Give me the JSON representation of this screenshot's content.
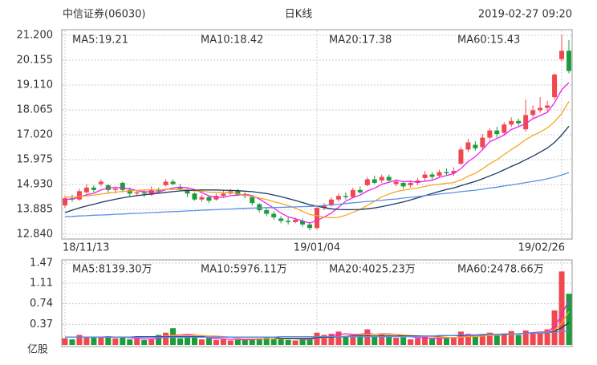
{
  "header": {
    "title": "中信证券(06030)",
    "subtitle": "日K线",
    "datetime": "2019-02-27 09:20"
  },
  "chart_data": [
    {
      "type": "candlestick",
      "categories": [
        "18/11/13",
        null,
        null,
        null,
        null,
        null,
        null,
        null,
        null,
        null,
        null,
        null,
        null,
        null,
        null,
        null,
        null,
        null,
        null,
        null,
        null,
        null,
        null,
        null,
        null,
        null,
        null,
        null,
        null,
        null,
        null,
        null,
        null,
        null,
        null,
        "19/01/04",
        null,
        null,
        null,
        null,
        null,
        null,
        null,
        null,
        null,
        null,
        null,
        null,
        null,
        null,
        null,
        null,
        null,
        null,
        null,
        null,
        null,
        null,
        null,
        null,
        null,
        null,
        null,
        null,
        null,
        null,
        null,
        null,
        null,
        "19/02/26",
        null
      ],
      "open": [
        14.05,
        14.35,
        14.3,
        14.6,
        14.8,
        14.95,
        14.9,
        14.7,
        15.0,
        14.7,
        14.55,
        14.6,
        14.5,
        14.7,
        14.9,
        15.05,
        14.8,
        14.7,
        14.55,
        14.3,
        14.4,
        14.3,
        14.45,
        14.55,
        14.65,
        14.5,
        14.4,
        14.1,
        13.85,
        13.7,
        13.5,
        13.4,
        13.35,
        13.4,
        13.25,
        13.1,
        13.95,
        14.05,
        14.3,
        14.45,
        14.4,
        14.7,
        14.9,
        15.15,
        15.1,
        15.25,
        14.95,
        15.0,
        14.9,
        15.0,
        15.2,
        15.35,
        15.3,
        15.45,
        15.4,
        15.8,
        16.4,
        16.6,
        16.5,
        16.9,
        17.2,
        17.1,
        17.45,
        17.6,
        17.25,
        17.85,
        18.05,
        18.15,
        18.6,
        20.2,
        20.55
      ],
      "high": [
        14.45,
        14.5,
        14.75,
        14.95,
        14.9,
        15.15,
        14.95,
        14.85,
        15.05,
        14.8,
        14.7,
        14.7,
        14.85,
        14.8,
        15.15,
        15.15,
        14.95,
        14.75,
        14.6,
        14.5,
        14.45,
        14.55,
        14.7,
        14.75,
        14.75,
        14.6,
        14.45,
        14.15,
        13.95,
        13.8,
        13.6,
        13.55,
        13.55,
        13.5,
        13.35,
        14.0,
        14.15,
        14.4,
        14.55,
        14.6,
        14.8,
        14.85,
        15.25,
        15.3,
        15.35,
        15.35,
        15.15,
        15.05,
        15.1,
        15.2,
        15.5,
        15.45,
        15.55,
        15.6,
        15.65,
        16.5,
        16.85,
        16.75,
        17.05,
        17.3,
        17.35,
        17.55,
        17.75,
        17.7,
        18.5,
        18.25,
        18.6,
        18.45,
        19.6,
        21.2,
        21.0
      ],
      "low": [
        13.95,
        14.2,
        14.25,
        14.55,
        14.6,
        14.85,
        14.6,
        14.55,
        14.6,
        14.45,
        14.45,
        14.4,
        14.45,
        14.55,
        14.85,
        14.9,
        14.65,
        14.4,
        14.25,
        14.2,
        14.15,
        14.25,
        14.4,
        14.5,
        14.45,
        14.35,
        14.05,
        13.75,
        13.6,
        13.45,
        13.3,
        13.25,
        13.3,
        13.15,
        13.0,
        13.05,
        13.85,
        14.0,
        14.2,
        14.3,
        14.35,
        14.55,
        14.85,
        14.95,
        15.0,
        15.05,
        14.85,
        14.75,
        14.8,
        14.9,
        15.1,
        15.15,
        15.2,
        15.3,
        15.3,
        15.75,
        16.3,
        16.35,
        16.4,
        16.8,
        16.9,
        17.0,
        17.35,
        17.4,
        17.15,
        17.7,
        17.95,
        18.0,
        18.5,
        20.1,
        19.6
      ],
      "close": [
        14.35,
        14.3,
        14.65,
        14.8,
        14.7,
        15.05,
        14.7,
        14.75,
        14.7,
        14.55,
        14.6,
        14.55,
        14.7,
        14.65,
        15.05,
        14.95,
        14.75,
        14.55,
        14.3,
        14.4,
        14.25,
        14.45,
        14.55,
        14.65,
        14.5,
        14.45,
        14.15,
        13.85,
        13.7,
        13.55,
        13.4,
        13.35,
        13.45,
        13.25,
        13.1,
        13.95,
        14.05,
        14.3,
        14.45,
        14.4,
        14.7,
        14.6,
        15.15,
        15.0,
        15.25,
        15.1,
        15.05,
        14.85,
        15.0,
        15.1,
        15.35,
        15.25,
        15.45,
        15.4,
        15.5,
        16.4,
        16.7,
        16.45,
        16.9,
        17.2,
        17.05,
        17.45,
        17.6,
        17.5,
        17.85,
        18.05,
        18.15,
        18.25,
        19.55,
        20.55,
        19.7
      ],
      "up_color": "#f0484f",
      "down_color": "#1c9c3a",
      "ylim": [
        12.84,
        21.2
      ],
      "yticks": [
        {
          "value": 12.84,
          "label": "12.840"
        },
        {
          "value": 13.885,
          "label": "13.885"
        },
        {
          "value": 14.93,
          "label": "14.930"
        },
        {
          "value": 15.975,
          "label": "15.975"
        },
        {
          "value": 17.02,
          "label": "17.020"
        },
        {
          "value": 18.065,
          "label": "18.065"
        },
        {
          "value": 19.11,
          "label": "19.110"
        },
        {
          "value": 20.155,
          "label": "20.155"
        },
        {
          "value": 21.2,
          "label": "21.200"
        }
      ],
      "grid": true,
      "series": [
        {
          "name": "MA5:19.21",
          "color": "#f01ef0",
          "values": [
            14.3,
            14.32,
            14.4,
            14.5,
            14.56,
            14.7,
            14.78,
            14.81,
            14.78,
            14.75,
            14.67,
            14.63,
            14.62,
            14.61,
            14.71,
            14.78,
            14.82,
            14.79,
            14.72,
            14.59,
            14.45,
            14.39,
            14.39,
            14.46,
            14.48,
            14.52,
            14.46,
            14.32,
            14.13,
            13.94,
            13.73,
            13.57,
            13.49,
            13.4,
            13.31,
            13.42,
            13.56,
            13.73,
            13.97,
            14.23,
            14.38,
            14.49,
            14.66,
            14.77,
            14.94,
            15.02,
            15.11,
            15.05,
            15.06,
            15.02,
            15.07,
            15.11,
            15.23,
            15.31,
            15.39,
            15.6,
            15.89,
            16.1,
            16.39,
            16.73,
            16.86,
            17.01,
            17.24,
            17.36,
            17.49,
            17.69,
            17.83,
            17.96,
            18.37,
            18.91,
            19.21
          ]
        },
        {
          "name": "MA10:18.42",
          "color": "#f5a623",
          "values": [
            14.4,
            14.4,
            14.42,
            14.45,
            14.48,
            14.53,
            14.57,
            14.61,
            14.64,
            14.66,
            14.68,
            14.7,
            14.71,
            14.7,
            14.73,
            14.72,
            14.72,
            14.7,
            14.66,
            14.65,
            14.61,
            14.6,
            14.6,
            14.6,
            14.54,
            14.49,
            14.43,
            14.36,
            14.3,
            14.21,
            14.13,
            14.04,
            13.94,
            13.8,
            13.67,
            13.62,
            13.56,
            13.53,
            13.55,
            13.64,
            13.76,
            13.88,
            14.05,
            14.23,
            14.41,
            14.53,
            14.63,
            14.69,
            14.74,
            14.78,
            14.85,
            14.91,
            14.94,
            14.98,
            15.01,
            15.12,
            15.28,
            15.4,
            15.59,
            15.8,
            15.97,
            16.19,
            16.4,
            16.59,
            16.82,
            16.99,
            17.13,
            17.31,
            17.57,
            17.91,
            18.42
          ]
        },
        {
          "name": "MA20:17.38",
          "color": "#1c3a5e",
          "values": [
            13.75,
            13.85,
            13.95,
            14.03,
            14.1,
            14.18,
            14.25,
            14.31,
            14.37,
            14.42,
            14.46,
            14.5,
            14.53,
            14.56,
            14.6,
            14.63,
            14.66,
            14.68,
            14.69,
            14.7,
            14.7,
            14.7,
            14.69,
            14.68,
            14.67,
            14.65,
            14.63,
            14.59,
            14.55,
            14.49,
            14.42,
            14.34,
            14.26,
            14.17,
            14.08,
            14.02,
            13.96,
            13.91,
            13.88,
            13.87,
            13.87,
            13.88,
            13.91,
            13.95,
            14.0,
            14.06,
            14.13,
            14.2,
            14.28,
            14.37,
            14.46,
            14.55,
            14.64,
            14.72,
            14.79,
            14.88,
            14.97,
            15.06,
            15.17,
            15.29,
            15.41,
            15.55,
            15.69,
            15.82,
            15.97,
            16.12,
            16.29,
            16.46,
            16.7,
            17.01,
            17.38
          ]
        },
        {
          "name": "MA60:15.43",
          "color": "#5b8fe8",
          "values": [
            13.58,
            13.59,
            13.61,
            13.62,
            13.64,
            13.65,
            13.66,
            13.68,
            13.69,
            13.71,
            13.72,
            13.73,
            13.75,
            13.76,
            13.78,
            13.79,
            13.8,
            13.82,
            13.83,
            13.85,
            13.86,
            13.87,
            13.89,
            13.9,
            13.92,
            13.93,
            13.94,
            13.95,
            13.96,
            13.96,
            13.97,
            13.98,
            13.99,
            14.0,
            14.01,
            14.02,
            14.05,
            14.08,
            14.1,
            14.13,
            14.16,
            14.19,
            14.22,
            14.24,
            14.27,
            14.3,
            14.32,
            14.36,
            14.39,
            14.42,
            14.46,
            14.49,
            14.53,
            14.56,
            14.59,
            14.63,
            14.66,
            14.69,
            14.73,
            14.78,
            14.82,
            14.87,
            14.91,
            14.96,
            15.01,
            15.06,
            15.11,
            15.17,
            15.24,
            15.33,
            15.43
          ]
        }
      ]
    },
    {
      "type": "bar",
      "values": [
        0.12,
        0.1,
        0.18,
        0.13,
        0.15,
        0.14,
        0.15,
        0.12,
        0.13,
        0.1,
        0.11,
        0.09,
        0.1,
        0.18,
        0.22,
        0.3,
        0.12,
        0.15,
        0.13,
        0.1,
        0.12,
        0.09,
        0.1,
        0.08,
        0.09,
        0.1,
        0.11,
        0.12,
        0.14,
        0.1,
        0.12,
        0.09,
        0.08,
        0.1,
        0.13,
        0.22,
        0.18,
        0.2,
        0.24,
        0.15,
        0.18,
        0.2,
        0.28,
        0.16,
        0.2,
        0.17,
        0.13,
        0.14,
        0.1,
        0.12,
        0.15,
        0.11,
        0.13,
        0.12,
        0.14,
        0.24,
        0.2,
        0.16,
        0.18,
        0.22,
        0.17,
        0.19,
        0.25,
        0.18,
        0.26,
        0.22,
        0.24,
        0.28,
        0.62,
        1.32,
        0.92
      ],
      "ylim": [
        0,
        1.47
      ],
      "yticks": [
        0.37,
        0.74,
        1.11,
        1.47
      ],
      "y_unit": "亿股",
      "grid": true,
      "series": [
        {
          "name": "MA5:8139.30万",
          "color": "#f01ef0",
          "values": [
            0.14,
            0.14,
            0.14,
            0.14,
            0.14,
            0.14,
            0.15,
            0.14,
            0.14,
            0.13,
            0.12,
            0.11,
            0.11,
            0.12,
            0.14,
            0.18,
            0.18,
            0.19,
            0.18,
            0.16,
            0.12,
            0.12,
            0.11,
            0.1,
            0.1,
            0.09,
            0.1,
            0.1,
            0.11,
            0.11,
            0.12,
            0.11,
            0.11,
            0.1,
            0.1,
            0.12,
            0.14,
            0.16,
            0.19,
            0.2,
            0.19,
            0.19,
            0.21,
            0.19,
            0.2,
            0.2,
            0.19,
            0.16,
            0.15,
            0.13,
            0.13,
            0.12,
            0.12,
            0.13,
            0.13,
            0.15,
            0.17,
            0.17,
            0.18,
            0.2,
            0.19,
            0.18,
            0.2,
            0.2,
            0.21,
            0.22,
            0.23,
            0.24,
            0.33,
            0.54,
            0.81
          ]
        },
        {
          "name": "MA10:5976.11万",
          "color": "#f5a623",
          "values": [
            0.14,
            0.14,
            0.14,
            0.14,
            0.14,
            0.14,
            0.14,
            0.14,
            0.14,
            0.14,
            0.15,
            0.15,
            0.15,
            0.15,
            0.16,
            0.17,
            0.17,
            0.17,
            0.17,
            0.17,
            0.16,
            0.16,
            0.15,
            0.14,
            0.12,
            0.11,
            0.11,
            0.11,
            0.11,
            0.11,
            0.11,
            0.11,
            0.11,
            0.11,
            0.11,
            0.12,
            0.13,
            0.14,
            0.15,
            0.16,
            0.17,
            0.18,
            0.19,
            0.19,
            0.19,
            0.19,
            0.19,
            0.18,
            0.17,
            0.16,
            0.16,
            0.15,
            0.14,
            0.14,
            0.13,
            0.14,
            0.15,
            0.15,
            0.16,
            0.17,
            0.18,
            0.18,
            0.19,
            0.2,
            0.21,
            0.21,
            0.22,
            0.23,
            0.27,
            0.39,
            0.6
          ]
        },
        {
          "name": "MA20:4025.23万",
          "color": "#1c3a5e",
          "values": [
            0.14,
            0.14,
            0.14,
            0.14,
            0.14,
            0.14,
            0.14,
            0.14,
            0.14,
            0.14,
            0.15,
            0.15,
            0.15,
            0.15,
            0.15,
            0.15,
            0.15,
            0.15,
            0.15,
            0.15,
            0.14,
            0.14,
            0.14,
            0.14,
            0.14,
            0.14,
            0.14,
            0.14,
            0.14,
            0.14,
            0.12,
            0.12,
            0.12,
            0.12,
            0.12,
            0.13,
            0.14,
            0.14,
            0.15,
            0.15,
            0.16,
            0.16,
            0.16,
            0.16,
            0.16,
            0.16,
            0.16,
            0.16,
            0.16,
            0.16,
            0.16,
            0.16,
            0.16,
            0.17,
            0.17,
            0.17,
            0.18,
            0.18,
            0.18,
            0.19,
            0.19,
            0.19,
            0.2,
            0.2,
            0.21,
            0.21,
            0.21,
            0.22,
            0.25,
            0.31,
            0.4
          ]
        },
        {
          "name": "MA60:2478.66万",
          "color": "#5b8fe8",
          "values": [
            0.14,
            0.14,
            0.14,
            0.14,
            0.14,
            0.14,
            0.14,
            0.14,
            0.14,
            0.14,
            0.14,
            0.14,
            0.14,
            0.14,
            0.14,
            0.14,
            0.14,
            0.14,
            0.14,
            0.14,
            0.14,
            0.14,
            0.14,
            0.14,
            0.14,
            0.14,
            0.14,
            0.14,
            0.14,
            0.14,
            0.15,
            0.15,
            0.15,
            0.15,
            0.15,
            0.15,
            0.15,
            0.15,
            0.15,
            0.15,
            0.15,
            0.15,
            0.15,
            0.15,
            0.15,
            0.15,
            0.15,
            0.15,
            0.15,
            0.15,
            0.16,
            0.16,
            0.17,
            0.17,
            0.17,
            0.18,
            0.18,
            0.18,
            0.19,
            0.19,
            0.19,
            0.2,
            0.2,
            0.2,
            0.21,
            0.21,
            0.21,
            0.22,
            0.23,
            0.24,
            0.25
          ]
        }
      ]
    }
  ]
}
